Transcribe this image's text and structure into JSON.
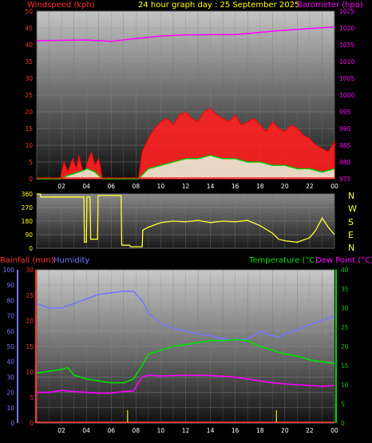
{
  "colors": {
    "wind": "#ff0000",
    "gust": "#ff2020",
    "avg_wind": "#00cc00",
    "barometer": "#ff00ff",
    "title": "#ffff00",
    "direction": "#ffff33",
    "rainfall": "#ff3333",
    "humidity": "#7777ff",
    "temperature": "#00e000",
    "dew_point": "#ff00ff",
    "rain_bar": "#cccc00",
    "axis_text_left": "#ff3333",
    "axis_text_pressure": "#ff00ff",
    "axis_text_dir": "#ffff00",
    "axis_text_hum": "#7777ff",
    "axis_text_temp": "#00cc00"
  },
  "header": {
    "wind_label": "Windspeed (kph)",
    "title": "24 hour graph day : 25 September 2025",
    "baro_label": "Barometer (hpa)"
  },
  "bottom_header": {
    "rain_label": "Rainfall (mm)",
    "hum_label": "Humidity",
    "temp_label": "Temperature (°C)",
    "dew_label": "Dew Point (°C)"
  },
  "direction_labels": [
    "N",
    "W",
    "S",
    "E",
    "N"
  ],
  "chart_data": [
    {
      "type": "line",
      "title": "24 hour graph day : 25 September 2025",
      "x_ticks": [
        "02",
        "04",
        "06",
        "08",
        "10",
        "12",
        "14",
        "16",
        "18",
        "20",
        "22",
        "00"
      ],
      "xlim_hours": [
        0,
        24
      ],
      "y_left": {
        "label": "Windspeed (kph)",
        "ylim": [
          0,
          50
        ],
        "ticks": [
          0,
          5,
          10,
          15,
          20,
          25,
          30,
          35,
          40,
          45,
          50
        ]
      },
      "y_right": {
        "label": "Barometer (hpa)",
        "ylim": [
          975,
          1025
        ],
        "ticks": [
          975,
          980,
          985,
          990,
          995,
          1000,
          1005,
          1010,
          1015,
          1020,
          1025
        ]
      },
      "series": [
        {
          "name": "Barometer (hpa)",
          "axis": "right",
          "x": [
            0,
            2,
            4,
            6,
            8,
            10,
            12,
            14,
            16,
            18,
            20,
            22,
            24
          ],
          "y": [
            1016.2,
            1016.3,
            1016.4,
            1016.0,
            1016.8,
            1017.6,
            1017.9,
            1018.0,
            1018.0,
            1018.7,
            1019.3,
            1019.8,
            1020.3
          ]
        },
        {
          "name": "Windspeed gust (kph)",
          "axis": "left",
          "x": [
            0,
            1.9,
            2.2,
            2.5,
            2.9,
            3.2,
            3.4,
            3.8,
            4.1,
            4.4,
            4.7,
            5.0,
            5.3,
            8.2,
            8.5,
            9.0,
            9.5,
            10.0,
            10.5,
            11.0,
            11.5,
            12.0,
            12.5,
            13.0,
            13.5,
            14.0,
            14.5,
            15.0,
            15.5,
            16.0,
            16.5,
            17.0,
            17.5,
            18.0,
            18.5,
            19.0,
            19.5,
            20.0,
            20.5,
            21.0,
            21.5,
            22.0,
            22.5,
            23.0,
            23.5,
            24.0
          ],
          "y": [
            0,
            0,
            5,
            2,
            6,
            3,
            7,
            1,
            5,
            8,
            4,
            6,
            0,
            0,
            8,
            12,
            15,
            17,
            18,
            16,
            19,
            20,
            18,
            17,
            20,
            21,
            19,
            18,
            17,
            19,
            16,
            17,
            18,
            16,
            14,
            17,
            15,
            14,
            16,
            15,
            13,
            12,
            10,
            9,
            8,
            11
          ]
        },
        {
          "name": "Average windspeed (kph)",
          "axis": "left",
          "x": [
            0,
            1.9,
            2.5,
            3.4,
            4.1,
            4.7,
            5.3,
            8.2,
            9.0,
            10.0,
            11.0,
            12.0,
            13.0,
            14.0,
            15.0,
            16.0,
            17.0,
            18.0,
            19.0,
            20.0,
            21.0,
            22.0,
            23.0,
            24.0
          ],
          "y": [
            0,
            0,
            1,
            2,
            3,
            2,
            0,
            0,
            3,
            4,
            5,
            6,
            6,
            7,
            6,
            6,
            5,
            5,
            4,
            4,
            3,
            3,
            2,
            3
          ]
        }
      ]
    },
    {
      "type": "line",
      "title": "",
      "x_ticks": [
        "02",
        "04",
        "06",
        "08",
        "10",
        "12",
        "14",
        "16",
        "18",
        "20",
        "22",
        "00"
      ],
      "y": {
        "ylim": [
          0,
          360
        ],
        "ticks": [
          0,
          90,
          180,
          270,
          360
        ]
      },
      "series": [
        {
          "name": "Wind direction",
          "x": [
            0,
            0.3,
            0.35,
            3.8,
            3.85,
            4.0,
            4.05,
            4.3,
            4.35,
            4.9,
            4.95,
            5.8,
            5.85,
            6.8,
            6.85,
            7.0,
            7.05,
            7.5,
            7.55,
            8.5,
            8.55,
            9.0,
            10.0,
            11.0,
            12.0,
            13.0,
            14.0,
            15.0,
            16.0,
            17.0,
            18.0,
            19.0,
            19.5,
            20.0,
            21.0,
            22.0,
            22.5,
            23.0,
            23.5,
            24.0
          ],
          "y": [
            360,
            360,
            340,
            340,
            40,
            40,
            340,
            340,
            60,
            60,
            350,
            350,
            350,
            350,
            20,
            20,
            20,
            20,
            10,
            10,
            120,
            140,
            170,
            180,
            175,
            185,
            170,
            180,
            175,
            185,
            150,
            100,
            60,
            50,
            40,
            70,
            120,
            200,
            140,
            90
          ]
        }
      ]
    },
    {
      "type": "line",
      "title": "",
      "x_ticks": [
        "02",
        "04",
        "06",
        "08",
        "10",
        "12",
        "14",
        "16",
        "18",
        "20",
        "22",
        "00"
      ],
      "y_left_outer": {
        "label": "Humidity",
        "ylim": [
          0,
          100
        ],
        "ticks": [
          0,
          10,
          20,
          30,
          40,
          50,
          60,
          70,
          80,
          90,
          100
        ]
      },
      "y_left_inner": {
        "label": "Rainfall (mm)",
        "ylim": [
          0,
          30
        ],
        "ticks": [
          0,
          5,
          10,
          15,
          20,
          25,
          30
        ]
      },
      "y_right": {
        "label": "Temperature (°C)",
        "ylim": [
          0,
          40
        ],
        "ticks": [
          0,
          5,
          10,
          15,
          20,
          25,
          30,
          35,
          40
        ]
      },
      "series": [
        {
          "name": "Humidity",
          "axis": "left_outer",
          "x": [
            0,
            1,
            2,
            3,
            4,
            5,
            6,
            7,
            7.8,
            8.5,
            9,
            10,
            11,
            12,
            13,
            14,
            15,
            16,
            17,
            18,
            18.5,
            19.5,
            20,
            21,
            22,
            23,
            24
          ],
          "y": [
            78,
            75,
            75,
            78,
            81,
            84,
            85,
            86,
            86,
            80,
            72,
            65,
            62,
            60,
            58,
            57,
            55,
            54,
            55,
            60,
            58,
            56,
            58,
            61,
            64,
            67,
            70
          ]
        },
        {
          "name": "Temperature (°C)",
          "axis": "right",
          "x": [
            0,
            1,
            2,
            2.5,
            3,
            4,
            5,
            6,
            7,
            7.8,
            8.5,
            9,
            10,
            11,
            12,
            13,
            14,
            15,
            16,
            17,
            18,
            19,
            20,
            21,
            22,
            23,
            24
          ],
          "y": [
            13,
            13.5,
            14,
            14.5,
            12.5,
            11.5,
            11,
            10.5,
            10.5,
            11.5,
            15,
            18,
            19,
            20,
            20.5,
            21,
            21.5,
            21.5,
            21.8,
            21.5,
            20,
            19,
            18,
            17.5,
            16.5,
            16,
            15.5
          ]
        },
        {
          "name": "Dew Point (°C)",
          "axis": "right",
          "x": [
            0,
            1,
            2,
            3,
            4,
            5,
            6,
            7,
            7.8,
            8.5,
            9,
            10,
            11,
            12,
            13,
            14,
            15,
            16,
            17,
            18,
            19,
            20,
            21,
            22,
            23,
            24
          ],
          "y": [
            8,
            8,
            8.5,
            8.2,
            8,
            7.8,
            7.8,
            8.2,
            8.4,
            12,
            12.5,
            12.3,
            12.4,
            12.5,
            12.5,
            12.4,
            12.2,
            12,
            11.5,
            11,
            10.5,
            10.2,
            10,
            9.8,
            9.6,
            9.8
          ]
        },
        {
          "name": "Rainfall (mm)",
          "axis": "left_inner",
          "x": [
            0,
            7.3,
            7.3,
            7.35,
            7.35,
            19.3,
            19.3,
            19.35,
            19.35,
            24
          ],
          "y": [
            0,
            0,
            0.2,
            0.2,
            0,
            0,
            0.2,
            0.2,
            0,
            0
          ]
        }
      ]
    }
  ]
}
